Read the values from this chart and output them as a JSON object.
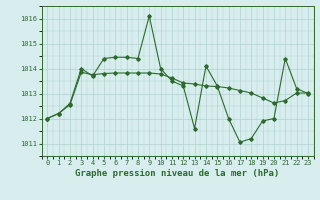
{
  "title": "Graphe pression niveau de la mer (hPa)",
  "background_color": "#d8eeee",
  "line_color": "#2d6a2d",
  "grid_color": "#b0d0d0",
  "series1": {
    "x": [
      0,
      1,
      2,
      3,
      4,
      5,
      6,
      7,
      8,
      9,
      10,
      11,
      12,
      13,
      14,
      15,
      16,
      17,
      18,
      19,
      20,
      21,
      22,
      23
    ],
    "y": [
      1012.0,
      1012.2,
      1012.6,
      1014.0,
      1013.7,
      1014.4,
      1014.45,
      1014.45,
      1014.4,
      1016.1,
      1014.0,
      1013.5,
      1013.3,
      1011.6,
      1014.1,
      1013.3,
      1012.0,
      1011.05,
      1011.2,
      1011.9,
      1012.0,
      1014.4,
      1013.2,
      1013.0
    ]
  },
  "series2": {
    "x": [
      0,
      1,
      2,
      3,
      4,
      5,
      6,
      7,
      8,
      9,
      10,
      11,
      12,
      13,
      14,
      15,
      16,
      17,
      18,
      19,
      20,
      21,
      22,
      23
    ],
    "y": [
      1012.0,
      1012.2,
      1012.55,
      1013.85,
      1013.75,
      1013.8,
      1013.82,
      1013.82,
      1013.82,
      1013.82,
      1013.78,
      1013.62,
      1013.42,
      1013.38,
      1013.3,
      1013.28,
      1013.22,
      1013.12,
      1013.02,
      1012.82,
      1012.62,
      1012.72,
      1013.02,
      1013.02
    ]
  },
  "ylim": [
    1010.5,
    1016.5
  ],
  "yticks": [
    1011,
    1012,
    1013,
    1014,
    1015,
    1016
  ],
  "xticks": [
    0,
    1,
    2,
    3,
    4,
    5,
    6,
    7,
    8,
    9,
    10,
    11,
    12,
    13,
    14,
    15,
    16,
    17,
    18,
    19,
    20,
    21,
    22,
    23
  ],
  "tick_fontsize": 5.0,
  "title_fontsize": 6.5,
  "marker": "D",
  "markersize": 1.8,
  "linewidth": 0.8
}
